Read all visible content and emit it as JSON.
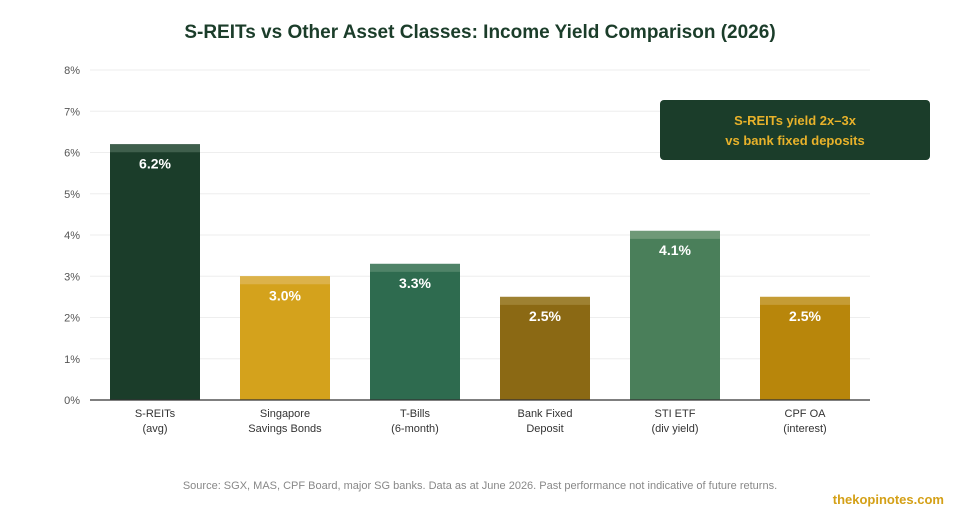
{
  "colors": {
    "title": "#1b3d2a",
    "gridline": "#eeeeee",
    "axis": "#333333",
    "tick_label": "#555555",
    "value_label": "#ffffff",
    "callout_bg": "#1b3d2a",
    "callout_text": "#e8b22a",
    "brand": "#d4a017",
    "source_text": "#888888"
  },
  "annotation": {
    "line1": "S-REITs yield 2x–3x",
    "line2": "vs bank fixed deposits"
  },
  "source_note": "Source: SGX, MAS, CPF Board, major SG banks. Data as at June 2026. Past performance not indicative of future returns.",
  "brand": "thekopinotes.com",
  "chart_data": {
    "type": "bar",
    "title": "S-REITs vs Other Asset Classes: Income Yield Comparison (2026)",
    "xlabel": "",
    "ylabel": "",
    "ylim": [
      0,
      8
    ],
    "yticks": [
      "0%",
      "1%",
      "2%",
      "3%",
      "4%",
      "5%",
      "6%",
      "7%",
      "8%"
    ],
    "grid": true,
    "categories": [
      {
        "line1": "S-REITs",
        "line2": "(avg)"
      },
      {
        "line1": "Singapore",
        "line2": "Savings Bonds"
      },
      {
        "line1": "T-Bills",
        "line2": "(6-month)"
      },
      {
        "line1": "Bank Fixed",
        "line2": "Deposit"
      },
      {
        "line1": "STI ETF",
        "line2": "(div yield)"
      },
      {
        "line1": "CPF OA",
        "line2": "(interest)"
      }
    ],
    "values": [
      6.2,
      3.0,
      3.3,
      2.5,
      4.1,
      2.5
    ],
    "data_labels": [
      "6.2%",
      "3.0%",
      "3.3%",
      "2.5%",
      "4.1%",
      "2.5%"
    ],
    "bar_colors": [
      "#1b3d2a",
      "#d4a21c",
      "#2e6b4f",
      "#8b6914",
      "#4a7f5a",
      "#b8860b"
    ],
    "cap_colors": [
      "#3f5f4c",
      "#dcb24a",
      "#4f8368",
      "#9e8132",
      "#6f9977",
      "#c59c35"
    ]
  }
}
